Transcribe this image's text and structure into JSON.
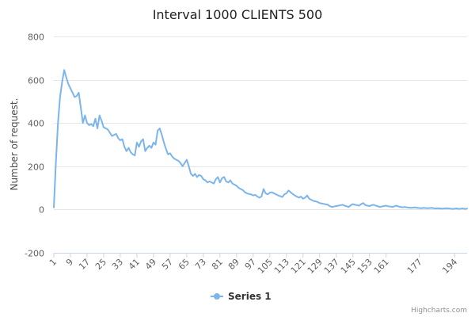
{
  "chart_data": {
    "type": "line",
    "title": "Interval 1000 CLIENTS 500",
    "xlabel": "",
    "ylabel": "Number of request.",
    "ylim": [
      -200,
      800
    ],
    "yticks": [
      -200,
      0,
      200,
      400,
      600,
      800
    ],
    "grid": true,
    "legend_position": "bottom-center",
    "x_tick_labels": [
      "1",
      "9",
      "17",
      "25",
      "33",
      "41",
      "49",
      "57",
      "65",
      "73",
      "81",
      "89",
      "97",
      "105",
      "113",
      "121",
      "129",
      "137",
      "145",
      "153",
      "161",
      "177",
      "194"
    ],
    "x": [
      1,
      2,
      3,
      4,
      5,
      6,
      7,
      8,
      9,
      10,
      11,
      12,
      13,
      14,
      15,
      16,
      17,
      18,
      19,
      20,
      21,
      22,
      23,
      24,
      25,
      26,
      27,
      28,
      29,
      30,
      31,
      32,
      33,
      34,
      35,
      36,
      37,
      38,
      39,
      40,
      41,
      42,
      43,
      44,
      45,
      46,
      47,
      48,
      49,
      50,
      51,
      52,
      53,
      54,
      55,
      56,
      57,
      58,
      59,
      60,
      61,
      62,
      63,
      64,
      65,
      66,
      67,
      68,
      69,
      70,
      71,
      72,
      73,
      74,
      75,
      76,
      77,
      78,
      79,
      80,
      81,
      82,
      83,
      84,
      85,
      86,
      87,
      88,
      89,
      90,
      91,
      92,
      93,
      94,
      95,
      96,
      97,
      98,
      99,
      100,
      101,
      102,
      103,
      104,
      105,
      106,
      107,
      108,
      109,
      110,
      111,
      112,
      113,
      114,
      115,
      116,
      117,
      118,
      119,
      120,
      121,
      122,
      123,
      124,
      125,
      126,
      127,
      128,
      129,
      130,
      131,
      132,
      133,
      134,
      135,
      136,
      137,
      138,
      139,
      140,
      141,
      142,
      143,
      144,
      145,
      146,
      147,
      148,
      149,
      150,
      151,
      152,
      153,
      154,
      155,
      156,
      157,
      158,
      159,
      160,
      161,
      162,
      163,
      164,
      165,
      166,
      167,
      168,
      169,
      170,
      171,
      172,
      173,
      174,
      175,
      176,
      177,
      178,
      179,
      180,
      181,
      182,
      183,
      184,
      185,
      186,
      187,
      188,
      189,
      190,
      191,
      192,
      193,
      194,
      195,
      196,
      197,
      198,
      199,
      200
    ],
    "series": [
      {
        "name": "Series 1",
        "color": "#7cb5ec",
        "values": [
          10,
          220,
          400,
          520,
          590,
          645,
          610,
          580,
          560,
          540,
          520,
          525,
          540,
          470,
          400,
          435,
          400,
          390,
          395,
          385,
          420,
          375,
          435,
          410,
          380,
          375,
          370,
          355,
          340,
          345,
          350,
          330,
          320,
          325,
          290,
          270,
          285,
          265,
          255,
          250,
          310,
          290,
          315,
          325,
          270,
          285,
          295,
          285,
          310,
          300,
          365,
          375,
          345,
          310,
          280,
          255,
          260,
          245,
          235,
          230,
          225,
          215,
          200,
          215,
          230,
          200,
          165,
          155,
          165,
          150,
          160,
          155,
          140,
          135,
          125,
          130,
          125,
          120,
          140,
          150,
          125,
          145,
          150,
          130,
          125,
          135,
          120,
          115,
          110,
          100,
          95,
          90,
          80,
          75,
          72,
          70,
          65,
          68,
          60,
          55,
          60,
          95,
          75,
          70,
          78,
          80,
          75,
          70,
          65,
          62,
          58,
          70,
          75,
          88,
          80,
          72,
          65,
          60,
          55,
          60,
          50,
          55,
          65,
          50,
          45,
          40,
          38,
          35,
          30,
          28,
          26,
          24,
          22,
          15,
          12,
          14,
          16,
          18,
          20,
          22,
          18,
          15,
          12,
          20,
          25,
          22,
          20,
          18,
          25,
          30,
          20,
          18,
          16,
          20,
          22,
          18,
          15,
          12,
          14,
          16,
          18,
          15,
          14,
          12,
          15,
          18,
          14,
          12,
          10,
          12,
          10,
          9,
          8,
          9,
          10,
          8,
          7,
          6,
          8,
          7,
          6,
          7,
          8,
          6,
          5,
          6,
          5,
          4,
          5,
          6,
          5,
          4,
          3,
          4,
          5,
          3,
          4,
          5,
          3,
          4
        ]
      }
    ]
  },
  "legend": {
    "items": [
      "Series 1"
    ]
  },
  "credits": "Highcharts.com"
}
